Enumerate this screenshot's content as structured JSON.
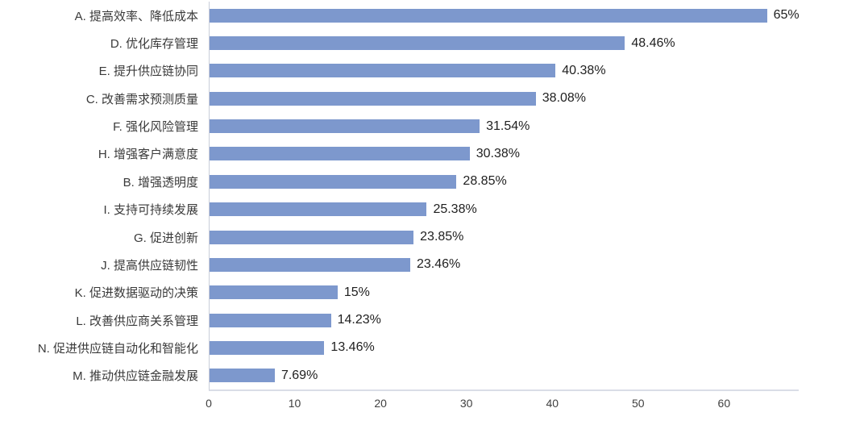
{
  "chart_data": {
    "type": "bar",
    "orientation": "horizontal",
    "title": "",
    "xlabel": "",
    "ylabel": "",
    "categories": [
      "A. 提高效率、降低成本",
      "D. 优化库存管理",
      "E. 提升供应链协同",
      "C. 改善需求预测质量",
      "F. 强化风险管理",
      "H. 增强客户满意度",
      "B. 增强透明度",
      "I. 支持可持续发展",
      "G. 促进创新",
      "J. 提高供应链韧性",
      "K. 促进数据驱动的决策",
      "L. 改善供应商关系管理",
      "N. 促进供应链自动化和智能化",
      "M. 推动供应链金融发展"
    ],
    "values": [
      65,
      48.46,
      40.38,
      38.08,
      31.54,
      30.38,
      28.85,
      25.38,
      23.85,
      23.46,
      15,
      14.23,
      13.46,
      7.69
    ],
    "value_labels": [
      "65%",
      "48.46%",
      "40.38%",
      "38.08%",
      "31.54%",
      "30.38%",
      "28.85%",
      "25.38%",
      "23.85%",
      "23.46%",
      "15%",
      "14.23%",
      "13.46%",
      "7.69%"
    ],
    "x_ticks": [
      0,
      10,
      20,
      30,
      40,
      50,
      60
    ],
    "xlim": [
      0,
      68.6
    ],
    "grid": false,
    "legend": false,
    "bar_color": "#7d98cd"
  }
}
